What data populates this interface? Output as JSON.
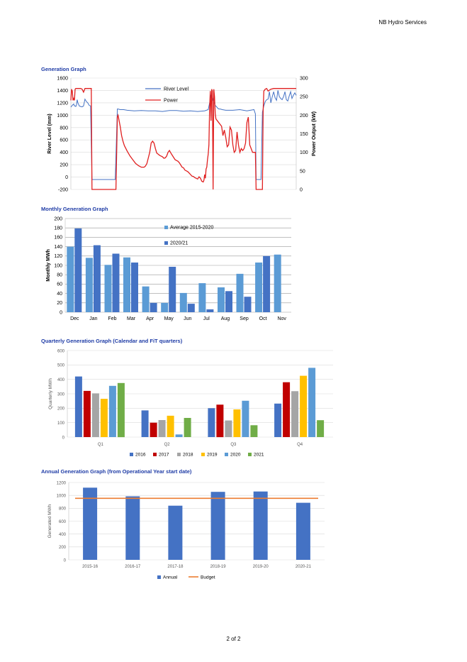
{
  "header": {
    "company": "NB Hydro Services"
  },
  "footer": {
    "page": "2 of 2"
  },
  "sections": {
    "generation": "Generation Graph",
    "monthly": "Monthly Generation Graph",
    "quarterly": "Quarterly Generation Graph (Calendar and FiT quarters)",
    "annual": "Annual Generation Graph (from Operational Year start date)"
  },
  "chart_data": [
    {
      "type": "line",
      "title": "Generation Graph",
      "ylabel": "River Level (mm)",
      "y2label": "Power Output (kW)",
      "ylim": [
        -200,
        1600
      ],
      "y2lim": [
        0,
        300
      ],
      "yticks": [
        -200,
        0,
        200,
        400,
        600,
        800,
        1000,
        1200,
        1400,
        1600
      ],
      "y2ticks": [
        0,
        50,
        100,
        150,
        200,
        250,
        300
      ],
      "legend_position": "top-center",
      "colors": {
        "river": "#4472c4",
        "power": "#e02020"
      },
      "series": [
        {
          "name": "River Level",
          "axis": "left",
          "x": [
            0,
            2,
            4,
            5,
            6,
            7,
            8,
            9,
            10,
            12,
            14,
            16,
            18,
            20,
            22,
            24,
            26,
            28,
            30,
            33,
            36,
            40,
            44,
            48,
            52,
            56,
            60,
            63,
            66,
            67,
            70,
            75,
            80,
            90,
            100,
            110,
            120,
            130,
            140,
            150,
            160,
            170,
            180,
            190,
            195,
            198,
            200,
            201,
            202,
            205,
            206,
            208,
            210,
            212,
            215,
            220,
            230,
            240,
            250,
            260,
            262,
            263,
            268,
            270,
            272,
            274,
            276,
            278,
            280,
            282,
            284,
            286,
            288,
            290,
            292,
            294,
            296,
            298,
            300,
            302,
            304,
            306,
            308,
            310,
            312,
            314,
            316,
            318,
            320
          ],
          "y": [
            1130,
            1160,
            1180,
            1150,
            1150,
            1140,
            1170,
            1250,
            1200,
            1150,
            1140,
            1135,
            1150,
            1260,
            1220,
            1200,
            1160,
            1150,
            -40,
            -40,
            -40,
            -40,
            -40,
            -40,
            -40,
            -40,
            -40,
            -40,
            1100,
            1100,
            1090,
            1090,
            1080,
            1070,
            1075,
            1070,
            1070,
            1060,
            1075,
            1075,
            1065,
            1070,
            1060,
            1070,
            1090,
            1250,
            1360,
            1300,
            1250,
            1150,
            1150,
            1120,
            1100,
            1100,
            1090,
            1080,
            1080,
            1090,
            1070,
            1090,
            1020,
            -40,
            -40,
            -40,
            1050,
            1150,
            1220,
            1250,
            1260,
            1380,
            1200,
            1300,
            1380,
            1280,
            1240,
            1400,
            1300,
            1270,
            1250,
            1300,
            1380,
            1250,
            1230,
            1310,
            1380,
            1270,
            1320,
            1360,
            1320
          ]
        },
        {
          "name": "Power",
          "axis": "right",
          "x": [
            0,
            1,
            2,
            3,
            4,
            5,
            6,
            7,
            10,
            12,
            14,
            16,
            18,
            20,
            22,
            26,
            29,
            30,
            33,
            36,
            40,
            44,
            48,
            52,
            56,
            60,
            63,
            64,
            66,
            67,
            68,
            70,
            72,
            74,
            76,
            80,
            84,
            88,
            92,
            96,
            98,
            100,
            102,
            104,
            106,
            108,
            110,
            112,
            114,
            116,
            118,
            120,
            122,
            124,
            126,
            128,
            130,
            132,
            134,
            136,
            138,
            140,
            142,
            144,
            146,
            148,
            150,
            152,
            154,
            156,
            158,
            160,
            162,
            164,
            166,
            168,
            170,
            172,
            174,
            176,
            178,
            180,
            182,
            184,
            186,
            188,
            189,
            190,
            191,
            192,
            193,
            194,
            195,
            196,
            197,
            198,
            199,
            200,
            201,
            202,
            203,
            204,
            205,
            206,
            208,
            210,
            212,
            214,
            216,
            218,
            220,
            222,
            224,
            226,
            228,
            230,
            232,
            234,
            236,
            238,
            240,
            242,
            244,
            246,
            248,
            250,
            252,
            254,
            256,
            258,
            260,
            262,
            263,
            266,
            270,
            272,
            273,
            274,
            276,
            278,
            280,
            284,
            288,
            292,
            296,
            300,
            304,
            308,
            312,
            316,
            320
          ],
          "y": [
            240,
            270,
            265,
            240,
            245,
            240,
            270,
            272,
            272,
            272,
            272,
            270,
            262,
            272,
            272,
            272,
            272,
            0,
            0,
            0,
            0,
            0,
            0,
            0,
            0,
            0,
            0,
            0,
            195,
            200,
            190,
            170,
            145,
            130,
            118,
            103,
            90,
            80,
            70,
            64,
            62,
            60,
            60,
            60,
            63,
            70,
            85,
            100,
            125,
            130,
            125,
            110,
            98,
            95,
            92,
            90,
            88,
            84,
            85,
            90,
            100,
            105,
            98,
            92,
            86,
            80,
            78,
            76,
            72,
            66,
            60,
            58,
            52,
            50,
            48,
            44,
            40,
            36,
            35,
            32,
            30,
            28,
            34,
            30,
            22,
            20,
            25,
            40,
            30,
            55,
            60,
            80,
            95,
            120,
            220,
            265,
            185,
            270,
            265,
            0,
            270,
            250,
            205,
            190,
            185,
            180,
            175,
            170,
            145,
            160,
            140,
            115,
            120,
            168,
            160,
            120,
            100,
            105,
            155,
            120,
            100,
            110,
            105,
            110,
            125,
            180,
            195,
            120,
            110,
            100,
            100,
            100,
            0,
            0,
            0,
            0,
            210,
            265,
            270,
            272,
            265,
            270,
            272,
            272,
            272,
            272,
            272,
            272,
            272,
            272,
            272
          ]
        }
      ]
    },
    {
      "type": "bar",
      "title": "Monthly Generation Graph",
      "ylabel": "Monthly MWh",
      "ylim": [
        0,
        200
      ],
      "yticks": [
        0,
        20,
        40,
        60,
        80,
        100,
        120,
        140,
        160,
        180,
        200
      ],
      "categories": [
        "Dec",
        "Jan",
        "Feb",
        "Mar",
        "Apr",
        "May",
        "Jun",
        "Jul",
        "Aug",
        "Sep",
        "Oct",
        "Nov"
      ],
      "legend_position": "top-center",
      "series": [
        {
          "name": "Average 2015-2020",
          "color": "#5b9bd5",
          "values": [
            140,
            116,
            101,
            117,
            55,
            20,
            41,
            62,
            53,
            82,
            106,
            123
          ]
        },
        {
          "name": "2020/21",
          "color": "#4472c4",
          "values": [
            179,
            143,
            125,
            106,
            20,
            97,
            18,
            6,
            45,
            33,
            120,
            null
          ]
        }
      ]
    },
    {
      "type": "bar",
      "title": "Quarterly Generation Graph (Calendar and FiT quarters)",
      "ylabel": "Quarterly MWh",
      "ylim": [
        0,
        600
      ],
      "yticks": [
        0,
        100,
        200,
        300,
        400,
        500,
        600
      ],
      "categories": [
        "Q1",
        "Q2",
        "Q3",
        "Q4"
      ],
      "legend_position": "bottom",
      "series": [
        {
          "name": "2016",
          "color": "#4472c4",
          "values": [
            420,
            185,
            200,
            232
          ]
        },
        {
          "name": "2017",
          "color": "#c00000",
          "values": [
            320,
            100,
            225,
            380
          ]
        },
        {
          "name": "2018",
          "color": "#a5a5a5",
          "values": [
            303,
            118,
            115,
            318
          ]
        },
        {
          "name": "2019",
          "color": "#ffc000",
          "values": [
            265,
            148,
            192,
            425
          ]
        },
        {
          "name": "2020",
          "color": "#5b9bd5",
          "values": [
            355,
            18,
            252,
            480
          ]
        },
        {
          "name": "2021",
          "color": "#70ad47",
          "values": [
            375,
            133,
            82,
            117
          ]
        }
      ]
    },
    {
      "type": "bar",
      "title": "Annual Generation Graph (from Operational Year start date)",
      "ylabel": "Generated MWh",
      "ylim": [
        0,
        1200
      ],
      "yticks": [
        0,
        200,
        400,
        600,
        800,
        1000,
        1200
      ],
      "categories": [
        "2015-16",
        "2016-17",
        "2017-18",
        "2018-19",
        "2019-20",
        "2020-21"
      ],
      "legend_position": "bottom",
      "series": [
        {
          "name": "Annual",
          "color": "#4472c4",
          "values": [
            1120,
            985,
            840,
            1055,
            1060,
            885
          ]
        },
        {
          "name": "Budget",
          "color": "#ed7d31",
          "line": true,
          "values": [
            955,
            955,
            955,
            955,
            955,
            955
          ]
        }
      ]
    }
  ]
}
